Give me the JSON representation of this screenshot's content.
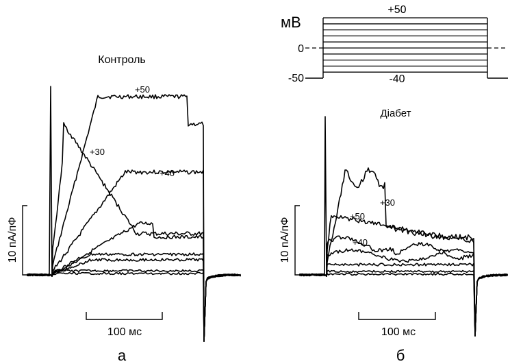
{
  "chart_data": [
    {
      "panel": "a",
      "type": "line",
      "title": "Контроль",
      "ylabel": "10 пА/пФ",
      "scale_bars": {
        "y": "10 пА/пФ",
        "x": "100 мс"
      },
      "series": [
        {
          "name": "+50",
          "peak_label": "+50"
        },
        {
          "name": "+40",
          "peak_label": "+40"
        },
        {
          "name": "+30",
          "peak_label": "+30"
        }
      ],
      "panel_letter": "а"
    },
    {
      "panel": "b",
      "type": "line",
      "title": "Діабет",
      "ylabel": "10 пА/пФ",
      "scale_bars": {
        "y": "10 пА/пФ",
        "x": "100 мс"
      },
      "series": [
        {
          "name": "+30",
          "peak_label": "+30"
        },
        {
          "name": "+50",
          "peak_label": "+50"
        },
        {
          "name": "+40",
          "peak_label": "+40"
        }
      ],
      "panel_letter": "б"
    }
  ],
  "protocol": {
    "unit": "мВ",
    "levels_mV": [
      -40,
      -30,
      -20,
      -10,
      0,
      10,
      20,
      30,
      40,
      50
    ],
    "holding_mV": -50,
    "top_label": "+50",
    "bottom_label": "-40",
    "tick_zero": "0",
    "tick_holding": "-50"
  }
}
